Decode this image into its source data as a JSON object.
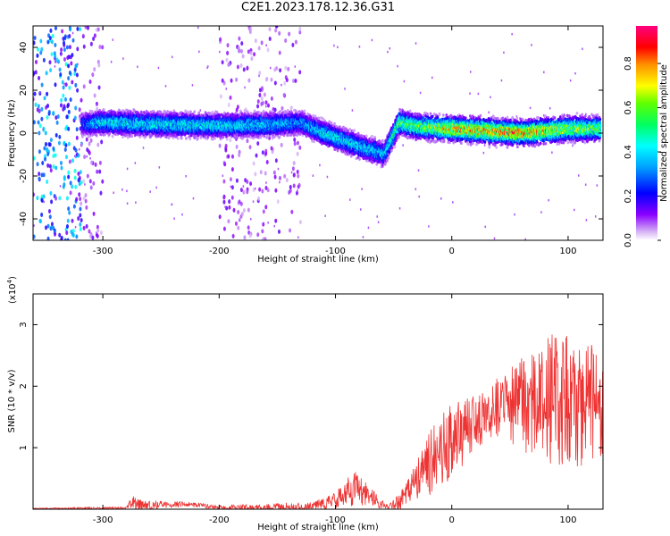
{
  "title": "C2E1.2023.178.12.36.G31",
  "chart_data": [
    {
      "type": "heatmap",
      "xlabel": "Height of straight line (km)",
      "ylabel": "Frequency (Hz)",
      "xlim": [
        -360,
        130
      ],
      "ylim": [
        -50,
        50
      ],
      "x_ticks": [
        -300,
        -200,
        -100,
        0,
        100
      ],
      "y_ticks": [
        40,
        20,
        0,
        -20,
        -40
      ],
      "colorbar": {
        "label": "Normalized spectral amplitude",
        "range": [
          0.0,
          0.97
        ],
        "ticks": [
          0.0,
          0.2,
          0.4,
          0.6,
          0.8
        ]
      },
      "signal_band": [
        {
          "x": -318,
          "center": 4,
          "amp": 0.3
        },
        {
          "x": -300,
          "center": 5,
          "amp": 0.45
        },
        {
          "x": -250,
          "center": 4,
          "amp": 0.45
        },
        {
          "x": -200,
          "center": 3.5,
          "amp": 0.45
        },
        {
          "x": -150,
          "center": 4,
          "amp": 0.4
        },
        {
          "x": -130,
          "center": 5,
          "amp": 0.35
        },
        {
          "x": -110,
          "center": 0,
          "amp": 0.45
        },
        {
          "x": -80,
          "center": -6,
          "amp": 0.45
        },
        {
          "x": -58,
          "center": -10,
          "amp": 0.4
        },
        {
          "x": -45,
          "center": 5,
          "amp": 0.6
        },
        {
          "x": -30,
          "center": 3,
          "amp": 0.6
        },
        {
          "x": 0,
          "center": 2,
          "amp": 0.8
        },
        {
          "x": 30,
          "center": 1,
          "amp": 0.85
        },
        {
          "x": 60,
          "center": 0,
          "amp": 0.85
        },
        {
          "x": 100,
          "center": 2,
          "amp": 0.7
        },
        {
          "x": 128,
          "center": 2,
          "amp": 0.6
        }
      ],
      "noise_regions": [
        {
          "x_range": [
            -360,
            -318
          ],
          "amp": 0.45
        },
        {
          "x_range": [
            -320,
            -300
          ],
          "amp": 0.15
        },
        {
          "x_range": [
            -200,
            -130
          ],
          "amp": 0.15
        }
      ]
    },
    {
      "type": "line",
      "xlabel": "Height of straight line (km)",
      "ylabel": "SNR (10 * v/v)",
      "y_multiplier_label": "(x10",
      "y_multiplier_exp": "4",
      "xlim": [
        -360,
        130
      ],
      "ylim": [
        0,
        3.5
      ],
      "x_ticks": [
        -300,
        -200,
        -100,
        0,
        100
      ],
      "y_ticks": [
        1,
        2,
        3
      ],
      "series_color": "#ee3333",
      "envelope_mean": [
        {
          "x": -360,
          "y": 0.01
        },
        {
          "x": -280,
          "y": 0.02
        },
        {
          "x": -275,
          "y": 0.12
        },
        {
          "x": -265,
          "y": 0.03
        },
        {
          "x": -250,
          "y": 0.08
        },
        {
          "x": -220,
          "y": 0.07
        },
        {
          "x": -200,
          "y": 0.03
        },
        {
          "x": -120,
          "y": 0.02
        },
        {
          "x": -100,
          "y": 0.15
        },
        {
          "x": -85,
          "y": 0.35
        },
        {
          "x": -70,
          "y": 0.2
        },
        {
          "x": -55,
          "y": 0.03
        },
        {
          "x": -45,
          "y": 0.1
        },
        {
          "x": -30,
          "y": 0.5
        },
        {
          "x": -10,
          "y": 0.95
        },
        {
          "x": 10,
          "y": 1.25
        },
        {
          "x": 30,
          "y": 1.55
        },
        {
          "x": 60,
          "y": 1.75
        },
        {
          "x": 90,
          "y": 1.75
        },
        {
          "x": 130,
          "y": 1.7
        }
      ],
      "envelope_amplitude": [
        {
          "x": -360,
          "y": 0.01
        },
        {
          "x": -280,
          "y": 0.02
        },
        {
          "x": -275,
          "y": 0.12
        },
        {
          "x": -250,
          "y": 0.06
        },
        {
          "x": -200,
          "y": 0.03
        },
        {
          "x": -100,
          "y": 0.12
        },
        {
          "x": -85,
          "y": 0.3
        },
        {
          "x": -55,
          "y": 0.03
        },
        {
          "x": -30,
          "y": 0.35
        },
        {
          "x": -15,
          "y": 0.6
        },
        {
          "x": 0,
          "y": 0.6
        },
        {
          "x": 30,
          "y": 0.4
        },
        {
          "x": 60,
          "y": 0.8
        },
        {
          "x": 90,
          "y": 1.15
        },
        {
          "x": 130,
          "y": 0.9
        }
      ]
    }
  ]
}
